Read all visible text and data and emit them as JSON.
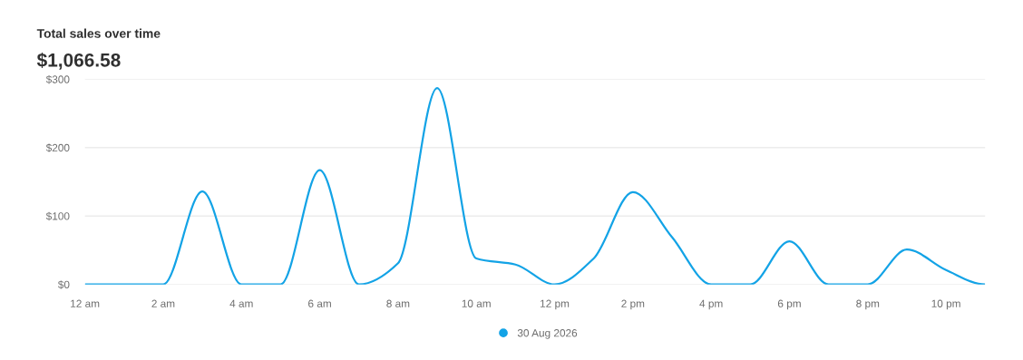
{
  "chart_data": {
    "type": "line",
    "title": "Total sales over time",
    "subtitle": "$1,066.58",
    "categories": [
      "12 am",
      null,
      "2 am",
      null,
      "4 am",
      null,
      "6 am",
      null,
      "8 am",
      null,
      "10 am",
      null,
      "12 pm",
      null,
      "2 pm",
      null,
      "4 pm",
      null,
      "6 pm",
      null,
      "8 pm",
      null,
      "10 pm",
      null
    ],
    "series": [
      {
        "name": "30 Aug 2026",
        "color": "#13a3e6",
        "values": [
          0,
          0,
          0,
          136,
          0,
          0,
          167,
          0,
          31,
          287,
          38,
          29,
          0,
          38,
          135,
          69,
          0,
          0,
          63,
          0,
          0,
          51,
          21,
          0
        ]
      }
    ],
    "ylim": [
      0,
      300
    ],
    "yticks": [
      {
        "value": 0,
        "label": "$0"
      },
      {
        "value": 100,
        "label": "$100"
      },
      {
        "value": 200,
        "label": "$200"
      },
      {
        "value": 300,
        "label": "$300"
      }
    ],
    "grid": "y",
    "legend": "bottom"
  }
}
